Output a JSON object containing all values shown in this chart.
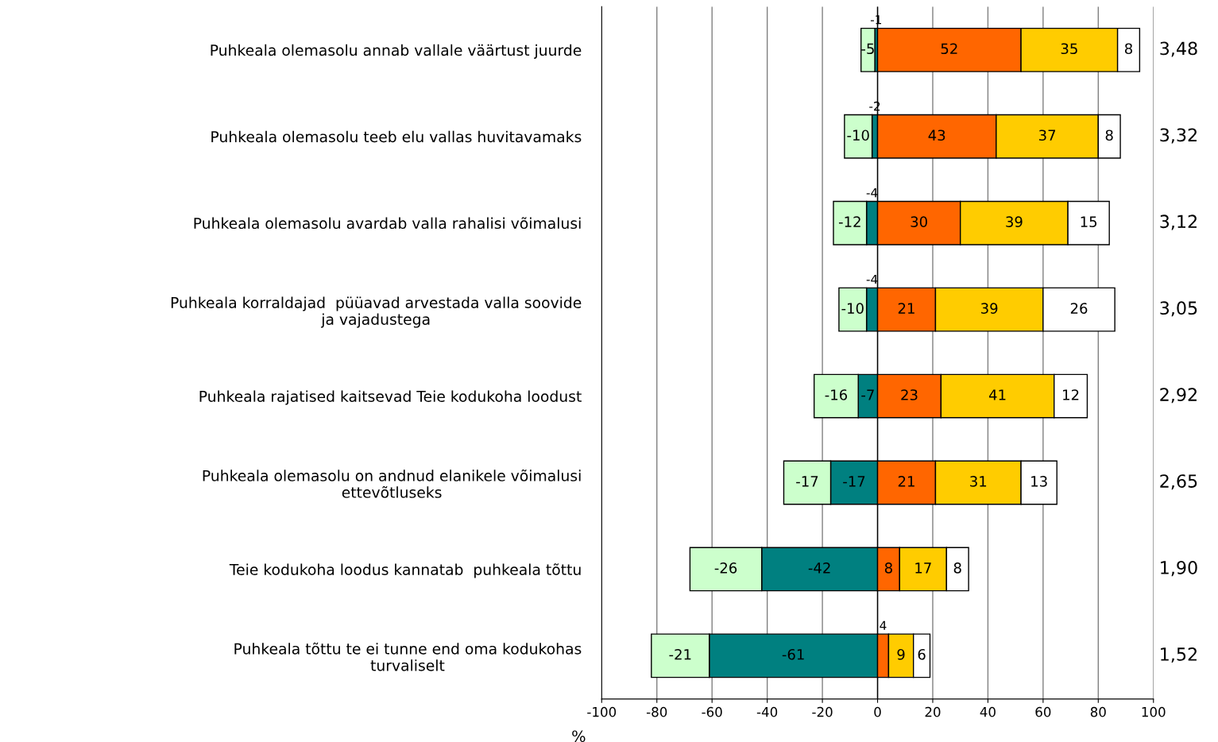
{
  "chart_data": {
    "type": "bar",
    "orientation": "horizontal",
    "stacked": true,
    "data_labels": true,
    "grid": "x",
    "xlabel": "%",
    "categories": [
      "Puhkeala olemasolu annab vallale väärtust juurde",
      "Puhkeala olemasolu teeb elu vallas huvitavamaks",
      "Puhkeala olemasolu avardab valla rahalisi võimalusi",
      "Puhkeala korraldajad  püüavad arvestada valla soovide\nja vajadustega",
      "Puhkeala rajatised kaitsevad Teie kodukoha loodust",
      "Puhkeala olemasolu on andnud elanikele võimalusi\nettevõtluseks",
      "Teie kodukoha loodus kannatab  puhkeala tõttu",
      "Puhkeala tõttu te ei tunne end oma kodukohas\nturvaliselt"
    ],
    "series": [
      {
        "color": "#008080",
        "values": [
          -1,
          -2,
          -4,
          -4,
          -7,
          -17,
          -42,
          -61
        ]
      },
      {
        "color": "#ccffcc",
        "values": [
          -5,
          -10,
          -12,
          -10,
          -16,
          -17,
          -26,
          -21
        ]
      },
      {
        "color": "#ff6600",
        "values": [
          52,
          43,
          30,
          21,
          23,
          21,
          8,
          4
        ]
      },
      {
        "color": "#ffcc00",
        "values": [
          35,
          37,
          39,
          39,
          41,
          31,
          17,
          9
        ]
      },
      {
        "color": "#ffffff",
        "values": [
          8,
          8,
          15,
          26,
          12,
          13,
          8,
          6
        ]
      }
    ],
    "xlim": [
      -100,
      100
    ],
    "xticks": [
      -100,
      -80,
      -60,
      -40,
      -20,
      0,
      20,
      40,
      60,
      80,
      100
    ],
    "annotations": [
      "3,48",
      "3,32",
      "3,12",
      "3,05",
      "2,92",
      "2,65",
      "1,90",
      "1,52"
    ]
  }
}
